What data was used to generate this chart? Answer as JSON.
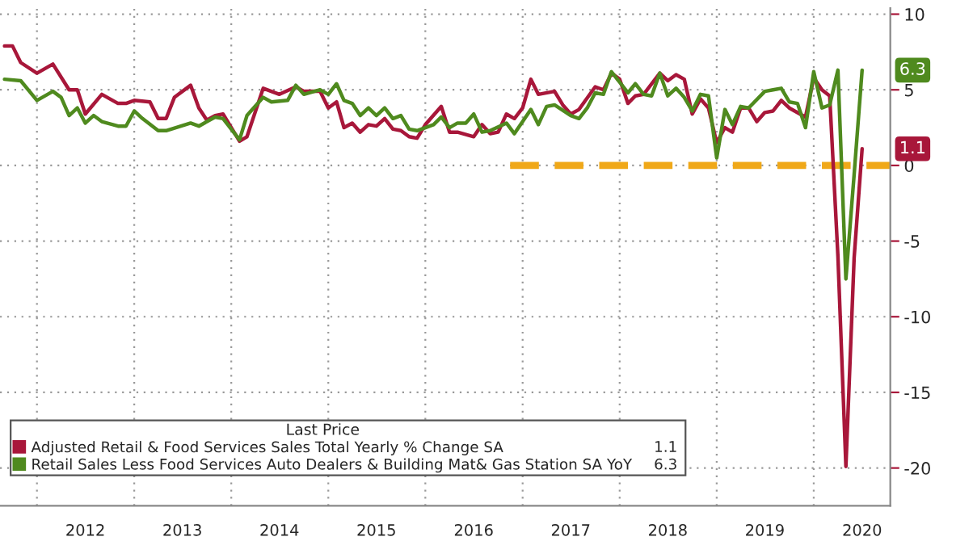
{
  "chart_data": {
    "type": "line",
    "legend_title": "Last Price",
    "legend": "bottom left",
    "grid": true,
    "line_style": "solid",
    "ylim": [
      -22.5,
      10.4
    ],
    "yticks": [
      10,
      5,
      0,
      -5,
      -10,
      -15,
      -20
    ],
    "xlim": [
      "2011-08-15",
      "2020-10-15"
    ],
    "xticks": [
      {
        "value": "2012-01-01",
        "label": null
      },
      {
        "value": "2012-07-01",
        "label": "2012"
      },
      {
        "value": "2013-01-01",
        "label": null
      },
      {
        "value": "2013-07-01",
        "label": "2013"
      },
      {
        "value": "2014-01-01",
        "label": null
      },
      {
        "value": "2014-07-01",
        "label": "2014"
      },
      {
        "value": "2015-01-01",
        "label": null
      },
      {
        "value": "2015-07-01",
        "label": "2015"
      },
      {
        "value": "2016-01-01",
        "label": null
      },
      {
        "value": "2016-07-01",
        "label": "2016"
      },
      {
        "value": "2017-01-01",
        "label": null
      },
      {
        "value": "2017-07-01",
        "label": "2017"
      },
      {
        "value": "2018-01-01",
        "label": null
      },
      {
        "value": "2018-07-01",
        "label": "2018"
      },
      {
        "value": "2019-01-01",
        "label": null
      },
      {
        "value": "2019-07-01",
        "label": "2019"
      },
      {
        "value": "2020-01-01",
        "label": null
      },
      {
        "value": "2020-07-01",
        "label": "2020"
      }
    ],
    "annotations": [
      {
        "text": "1.1",
        "y": 1.1
      },
      {
        "text": "6.3",
        "y": 6.3
      },
      "1.1",
      "6.3"
    ],
    "series": [
      {
        "name": "Adjusted Retail & Food Services Sales Total Yearly % Change SA",
        "color": "#a8173a",
        "x": [
          "2011-09",
          "2011-10",
          "2011-11",
          "2012-01",
          "2012-03",
          "2012-05",
          "2012-06",
          "2012-07",
          "2012-09",
          "2012-11",
          "2012-12",
          "2013-01",
          "2013-03",
          "2013-04",
          "2013-05",
          "2013-06",
          "2013-08",
          "2013-09",
          "2013-10",
          "2013-11",
          "2013-12",
          "2014-02",
          "2014-03",
          "2014-05",
          "2014-07",
          "2014-09",
          "2014-10",
          "2014-12",
          "2015-01",
          "2015-02",
          "2015-03",
          "2015-04",
          "2015-05",
          "2015-06",
          "2015-07",
          "2015-08",
          "2015-09",
          "2015-10",
          "2015-11",
          "2015-12",
          "2016-01",
          "2016-03",
          "2016-04",
          "2016-05",
          "2016-07",
          "2016-08",
          "2016-09",
          "2016-10",
          "2016-11",
          "2016-12",
          "2017-01",
          "2017-02",
          "2017-03",
          "2017-05",
          "2017-06",
          "2017-07",
          "2017-08",
          "2017-10",
          "2017-11",
          "2017-12",
          "2018-01",
          "2018-02",
          "2018-03",
          "2018-04",
          "2018-06",
          "2018-07",
          "2018-08",
          "2018-09",
          "2018-10",
          "2018-11",
          "2018-12",
          "2019-01",
          "2019-02",
          "2019-03",
          "2019-04",
          "2019-05",
          "2019-06",
          "2019-07",
          "2019-08",
          "2019-09",
          "2019-10",
          "2019-12",
          "2020-01",
          "2020-02",
          "2020-03",
          "2020-04",
          "2020-05",
          "2020-06",
          "2020-07"
        ],
        "values": [
          7.9,
          7.9,
          6.8,
          6.1,
          6.7,
          5.0,
          5.0,
          3.4,
          4.7,
          4.1,
          4.1,
          4.3,
          4.2,
          3.1,
          3.1,
          4.5,
          5.3,
          3.8,
          3.0,
          3.3,
          3.4,
          1.6,
          1.9,
          5.1,
          4.7,
          5.2,
          4.9,
          4.9,
          3.8,
          4.2,
          2.5,
          2.8,
          2.2,
          2.7,
          2.6,
          3.1,
          2.4,
          2.3,
          1.9,
          1.8,
          2.7,
          3.9,
          2.2,
          2.2,
          1.9,
          2.7,
          2.1,
          2.2,
          3.4,
          3.1,
          3.8,
          5.7,
          4.7,
          4.9,
          4.0,
          3.4,
          3.7,
          5.2,
          5.0,
          6.1,
          5.7,
          4.1,
          4.6,
          4.7,
          6.1,
          5.6,
          6.0,
          5.7,
          3.4,
          4.4,
          3.8,
          1.5,
          2.5,
          2.2,
          3.8,
          3.8,
          2.9,
          3.5,
          3.6,
          4.3,
          3.8,
          3.2,
          5.8,
          5.0,
          4.6,
          -6.0,
          -19.9,
          -6.1,
          1.1
        ]
      },
      {
        "name": "Retail Sales Less Food Services Auto Dealers & Building Mat& Gas Station SA YoY",
        "color": "#4f8a1e",
        "x": [
          "2011-09",
          "2011-11",
          "2012-01",
          "2012-03",
          "2012-04",
          "2012-05",
          "2012-06",
          "2012-07",
          "2012-08",
          "2012-09",
          "2012-11",
          "2012-12",
          "2013-01",
          "2013-02",
          "2013-04",
          "2013-05",
          "2013-08",
          "2013-09",
          "2013-11",
          "2013-12",
          "2014-02",
          "2014-03",
          "2014-05",
          "2014-06",
          "2014-08",
          "2014-09",
          "2014-10",
          "2014-12",
          "2015-01",
          "2015-02",
          "2015-03",
          "2015-04",
          "2015-05",
          "2015-06",
          "2015-07",
          "2015-08",
          "2015-09",
          "2015-10",
          "2015-11",
          "2015-12",
          "2016-02",
          "2016-03",
          "2016-04",
          "2016-05",
          "2016-06",
          "2016-07",
          "2016-08",
          "2016-09",
          "2016-11",
          "2016-12",
          "2017-02",
          "2017-03",
          "2017-04",
          "2017-05",
          "2017-07",
          "2017-08",
          "2017-09",
          "2017-10",
          "2017-11",
          "2017-12",
          "2018-02",
          "2018-03",
          "2018-04",
          "2018-05",
          "2018-06",
          "2018-07",
          "2018-08",
          "2018-09",
          "2018-10",
          "2018-11",
          "2018-12",
          "2019-01",
          "2019-02",
          "2019-03",
          "2019-04",
          "2019-05",
          "2019-07",
          "2019-08",
          "2019-09",
          "2019-10",
          "2019-11",
          "2019-12",
          "2020-01",
          "2020-02",
          "2020-03",
          "2020-04",
          "2020-05",
          "2020-06",
          "2020-07"
        ],
        "values": [
          5.7,
          5.6,
          4.3,
          4.9,
          4.5,
          3.3,
          3.8,
          2.8,
          3.3,
          2.9,
          2.6,
          2.6,
          3.6,
          3.1,
          2.3,
          2.3,
          2.8,
          2.6,
          3.2,
          3.1,
          1.7,
          3.3,
          4.5,
          4.2,
          4.3,
          5.3,
          4.7,
          5.0,
          4.7,
          5.4,
          4.3,
          4.1,
          3.3,
          3.8,
          3.3,
          3.8,
          3.1,
          3.3,
          2.4,
          2.3,
          2.7,
          3.2,
          2.5,
          2.8,
          2.8,
          3.4,
          2.2,
          2.3,
          2.8,
          2.1,
          3.7,
          2.7,
          3.9,
          4.0,
          3.3,
          3.1,
          3.8,
          4.8,
          4.7,
          6.2,
          4.8,
          5.4,
          4.7,
          4.6,
          6.1,
          4.6,
          5.1,
          4.5,
          3.6,
          4.7,
          4.6,
          0.5,
          3.7,
          2.7,
          3.9,
          3.8,
          4.9,
          5.0,
          5.1,
          4.2,
          4.1,
          2.5,
          6.2,
          3.8,
          4.0,
          6.3,
          -7.5,
          -0.6,
          6.3
        ]
      },
      {
        "color": "#f0a818",
        "line_style": "dashed",
        "x": [
          "2016-11-15",
          "2020-10-15"
        ],
        "values": [
          0,
          0
        ]
      }
    ]
  }
}
